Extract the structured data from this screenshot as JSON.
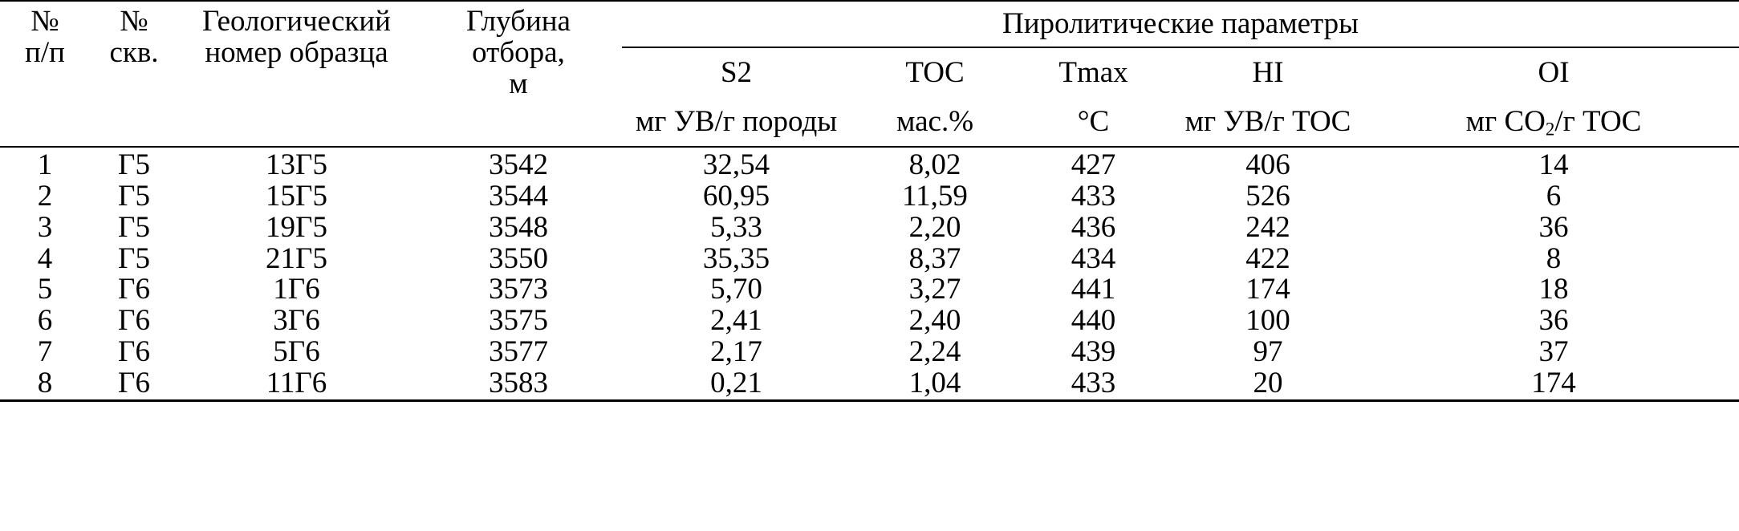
{
  "headers": {
    "num_line1": "№",
    "num_line2": "п/п",
    "well_line1": "№",
    "well_line2": "скв.",
    "sample_line1": "Геологический",
    "sample_line2": "номер образца",
    "depth_line1": "Глубина",
    "depth_line2": "отбора,",
    "depth_line3": "м",
    "pyro_group": "Пиролитические параметры",
    "s2_name": "S2",
    "s2_unit": "мг УВ/г породы",
    "toc_name": "TOC",
    "toc_unit": "мас.%",
    "tmax_name": "Tmax",
    "tmax_unit": "°С",
    "hi_name": "HI",
    "hi_unit": "мг УВ/г TOC",
    "oi_name": "OI",
    "oi_unit_pre": "мг CO",
    "oi_unit_sub": "2",
    "oi_unit_post": "/г TOC"
  },
  "rows": [
    {
      "n": "1",
      "well": "Г5",
      "sample": "13Г5",
      "depth": "3542",
      "s2": "32,54",
      "toc": "8,02",
      "tmax": "427",
      "hi": "406",
      "oi": "14"
    },
    {
      "n": "2",
      "well": "Г5",
      "sample": "15Г5",
      "depth": "3544",
      "s2": "60,95",
      "toc": "11,59",
      "tmax": "433",
      "hi": "526",
      "oi": "6"
    },
    {
      "n": "3",
      "well": "Г5",
      "sample": "19Г5",
      "depth": "3548",
      "s2": "5,33",
      "toc": "2,20",
      "tmax": "436",
      "hi": "242",
      "oi": "36"
    },
    {
      "n": "4",
      "well": "Г5",
      "sample": "21Г5",
      "depth": "3550",
      "s2": "35,35",
      "toc": "8,37",
      "tmax": "434",
      "hi": "422",
      "oi": "8"
    },
    {
      "n": "5",
      "well": "Г6",
      "sample": "1Г6",
      "depth": "3573",
      "s2": "5,70",
      "toc": "3,27",
      "tmax": "441",
      "hi": "174",
      "oi": "18"
    },
    {
      "n": "6",
      "well": "Г6",
      "sample": "3Г6",
      "depth": "3575",
      "s2": "2,41",
      "toc": "2,40",
      "tmax": "440",
      "hi": "100",
      "oi": "36"
    },
    {
      "n": "7",
      "well": "Г6",
      "sample": "5Г6",
      "depth": "3577",
      "s2": "2,17",
      "toc": "2,24",
      "tmax": "439",
      "hi": "97",
      "oi": "37"
    },
    {
      "n": "8",
      "well": "Г6",
      "sample": "11Г6",
      "depth": "3583",
      "s2": "0,21",
      "toc": "1,04",
      "tmax": "433",
      "hi": "20",
      "oi": "174"
    }
  ]
}
